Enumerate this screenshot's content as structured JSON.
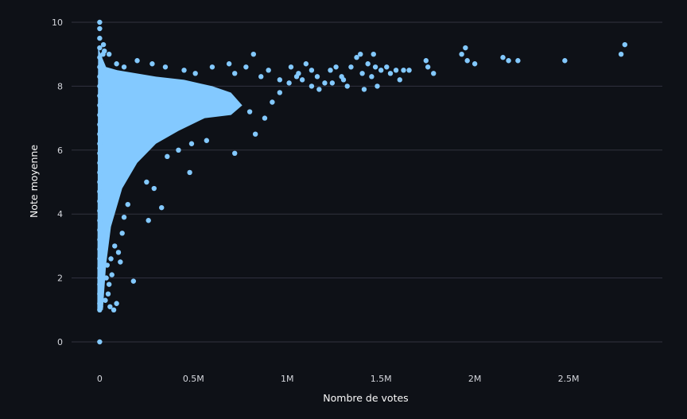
{
  "colors": {
    "background": "#0e1117",
    "point": "#83c9ff",
    "grid": "#31333f",
    "text": "#fafafa",
    "tick_text": "#d5d7dd"
  },
  "chart_data": {
    "type": "scatter",
    "title": "",
    "xlabel": "Nombre de votes",
    "ylabel": "Note moyenne",
    "xlim": [
      -150000,
      3000000
    ],
    "ylim": [
      -0.7,
      10.1
    ],
    "x_ticks": [
      {
        "value": 0,
        "label": "0"
      },
      {
        "value": 500000,
        "label": "0.5M"
      },
      {
        "value": 1000000,
        "label": "1M"
      },
      {
        "value": 1500000,
        "label": "1.5M"
      },
      {
        "value": 2000000,
        "label": "2M"
      },
      {
        "value": 2500000,
        "label": "2.5M"
      }
    ],
    "y_ticks": [
      {
        "value": 0,
        "label": "0"
      },
      {
        "value": 2,
        "label": "2"
      },
      {
        "value": 4,
        "label": "4"
      },
      {
        "value": 6,
        "label": "6"
      },
      {
        "value": 8,
        "label": "8"
      },
      {
        "value": 10,
        "label": "10"
      }
    ],
    "grid": {
      "y": true,
      "x": false
    },
    "legend": "none",
    "series": [
      {
        "points": [
          [
            0,
            0
          ],
          [
            0,
            1.0
          ],
          [
            0,
            1.2
          ],
          [
            0,
            1.5
          ],
          [
            0,
            1.8
          ],
          [
            0,
            2.0
          ],
          [
            0,
            2.3
          ],
          [
            0,
            2.6
          ],
          [
            0,
            2.9
          ],
          [
            0,
            3.2
          ],
          [
            0,
            3.5
          ],
          [
            0,
            3.8
          ],
          [
            0,
            4.1
          ],
          [
            0,
            4.4
          ],
          [
            0,
            4.7
          ],
          [
            0,
            5.0
          ],
          [
            0,
            5.3
          ],
          [
            0,
            5.6
          ],
          [
            0,
            5.9
          ],
          [
            0,
            6.2
          ],
          [
            0,
            6.5
          ],
          [
            0,
            6.8
          ],
          [
            0,
            7.1
          ],
          [
            0,
            7.4
          ],
          [
            0,
            7.7
          ],
          [
            0,
            8.0
          ],
          [
            0,
            8.3
          ],
          [
            0,
            8.6
          ],
          [
            0,
            8.9
          ],
          [
            0,
            9.2
          ],
          [
            0,
            9.5
          ],
          [
            0,
            9.8
          ],
          [
            0,
            10.0
          ],
          [
            5000,
            1.1
          ],
          [
            8000,
            1.6
          ],
          [
            10000,
            2.2
          ],
          [
            12000,
            2.7
          ],
          [
            15000,
            3.1
          ],
          [
            18000,
            9.0
          ],
          [
            20000,
            9.3
          ],
          [
            25000,
            9.1
          ],
          [
            30000,
            1.3
          ],
          [
            35000,
            2.0
          ],
          [
            40000,
            2.4
          ],
          [
            45000,
            1.5
          ],
          [
            50000,
            1.8
          ],
          [
            55000,
            1.1
          ],
          [
            60000,
            2.6
          ],
          [
            65000,
            2.1
          ],
          [
            75000,
            1.0
          ],
          [
            80000,
            3.0
          ],
          [
            90000,
            1.2
          ],
          [
            100000,
            2.8
          ],
          [
            110000,
            2.5
          ],
          [
            120000,
            3.4
          ],
          [
            130000,
            3.9
          ],
          [
            150000,
            4.3
          ],
          [
            180000,
            1.9
          ],
          [
            260000,
            3.8
          ],
          [
            330000,
            4.2
          ],
          [
            290000,
            4.8
          ],
          [
            250000,
            5.0
          ],
          [
            480000,
            5.3
          ],
          [
            360000,
            5.8
          ],
          [
            420000,
            6.0
          ],
          [
            490000,
            6.2
          ],
          [
            570000,
            6.3
          ],
          [
            720000,
            5.9
          ],
          [
            830000,
            6.5
          ],
          [
            880000,
            7.0
          ],
          [
            800000,
            7.2
          ],
          [
            920000,
            7.5
          ],
          [
            960000,
            7.8
          ],
          [
            860000,
            8.3
          ],
          [
            900000,
            8.5
          ],
          [
            960000,
            8.2
          ],
          [
            1010000,
            8.1
          ],
          [
            50000,
            9.0
          ],
          [
            90000,
            8.7
          ],
          [
            130000,
            8.6
          ],
          [
            200000,
            8.8
          ],
          [
            280000,
            8.7
          ],
          [
            350000,
            8.6
          ],
          [
            450000,
            8.5
          ],
          [
            510000,
            8.4
          ],
          [
            600000,
            8.6
          ],
          [
            690000,
            8.7
          ],
          [
            720000,
            8.4
          ],
          [
            780000,
            8.6
          ],
          [
            820000,
            9.0
          ],
          [
            1060000,
            8.4
          ],
          [
            1080000,
            8.2
          ],
          [
            1100000,
            8.7
          ],
          [
            1130000,
            8.5
          ],
          [
            1160000,
            8.3
          ],
          [
            1200000,
            8.1
          ],
          [
            1230000,
            8.5
          ],
          [
            1260000,
            8.6
          ],
          [
            1290000,
            8.3
          ],
          [
            1300000,
            8.2
          ],
          [
            1320000,
            8.0
          ],
          [
            1340000,
            8.6
          ],
          [
            1370000,
            8.9
          ],
          [
            1390000,
            9.0
          ],
          [
            1400000,
            8.4
          ],
          [
            1410000,
            7.9
          ],
          [
            1430000,
            8.7
          ],
          [
            1450000,
            8.3
          ],
          [
            1460000,
            9.0
          ],
          [
            1470000,
            8.6
          ],
          [
            1480000,
            8.0
          ],
          [
            1500000,
            8.5
          ],
          [
            1530000,
            8.6
          ],
          [
            1550000,
            8.4
          ],
          [
            1580000,
            8.5
          ],
          [
            1600000,
            8.2
          ],
          [
            1620000,
            8.5
          ],
          [
            1650000,
            8.5
          ],
          [
            1740000,
            8.8
          ],
          [
            1750000,
            8.6
          ],
          [
            1780000,
            8.4
          ],
          [
            1930000,
            9.0
          ],
          [
            1950000,
            9.2
          ],
          [
            1960000,
            8.8
          ],
          [
            2000000,
            8.7
          ],
          [
            2150000,
            8.9
          ],
          [
            2180000,
            8.8
          ],
          [
            2230000,
            8.8
          ],
          [
            2480000,
            8.8
          ],
          [
            2780000,
            9.0
          ],
          [
            2800000,
            9.3
          ],
          [
            1170000,
            7.9
          ],
          [
            1240000,
            8.1
          ],
          [
            1130000,
            8.0
          ],
          [
            1050000,
            8.3
          ],
          [
            1020000,
            8.6
          ]
        ]
      }
    ]
  }
}
